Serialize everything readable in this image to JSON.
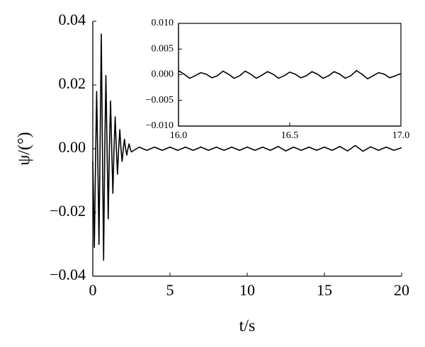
{
  "chart_data": [
    {
      "type": "line",
      "x_label": "t/s",
      "y_label": "ψ/(°)",
      "color": "#000000",
      "xlim": [
        0,
        20
      ],
      "ylim": [
        -0.04,
        0.04
      ],
      "xticks": [
        0,
        5,
        10,
        15,
        20
      ],
      "yticks": [
        {
          "value": -0.04,
          "label": "−0.04"
        },
        {
          "value": -0.02,
          "label": "−0.02"
        },
        {
          "value": 0,
          "label": "0.00"
        },
        0.02,
        0.04
      ],
      "x": [
        0,
        0.1,
        0.175,
        0.25,
        0.325,
        0.4,
        0.475,
        0.55,
        0.625,
        0.7,
        0.775,
        0.85,
        0.925,
        1.0,
        1.075,
        1.15,
        1.225,
        1.3,
        1.375,
        1.45,
        1.525,
        1.6,
        1.675,
        1.75,
        1.825,
        1.9,
        1.975,
        2.05,
        2.125,
        2.2,
        2.275,
        2.35,
        2.425,
        2.5,
        3,
        3.5,
        4,
        4.5,
        5,
        5.5,
        6,
        6.5,
        7,
        7.5,
        8,
        8.5,
        9,
        9.5,
        10,
        10.5,
        11,
        11.5,
        12,
        12.5,
        13,
        13.5,
        14,
        14.5,
        15,
        15.5,
        16,
        16.5,
        17,
        17.5,
        18,
        18.5,
        19,
        19.5,
        20
      ],
      "values": [
        -0.004,
        -0.031,
        -0.005,
        0.018,
        -0.004,
        -0.03,
        0.002,
        0.036,
        0,
        -0.035,
        0,
        0.023,
        0,
        -0.022,
        0,
        0.015,
        0,
        -0.014,
        0,
        0.01,
        0,
        -0.008,
        0,
        0.006,
        0,
        -0.004,
        0,
        0.003,
        0,
        -0.002,
        0,
        0.0015,
        0,
        -0.001,
        0.0005,
        -0.0005,
        0.0005,
        -0.0005,
        0.0005,
        -0.0005,
        0.0005,
        -0.0005,
        0.0005,
        -0.0005,
        0.0005,
        -0.0005,
        0.0005,
        -0.0005,
        0.0005,
        -0.0005,
        0.0005,
        -0.0005,
        0.0007,
        -0.0007,
        0.0005,
        -0.0005,
        0.0005,
        -0.0005,
        0.0005,
        -0.0005,
        0.0007,
        -0.0007,
        0.001,
        -0.0008,
        0.0006,
        -0.0005,
        0.0005,
        -0.0005,
        0.0003
      ]
    },
    {
      "type": "line",
      "color": "#000000",
      "xlim": [
        16,
        17
      ],
      "ylim": [
        -0.01,
        0.01
      ],
      "xticks": [
        {
          "value": 16,
          "label": "16.0"
        },
        {
          "value": 16.5,
          "label": "16.5"
        },
        {
          "value": 17,
          "label": "17.0"
        }
      ],
      "yticks": [
        {
          "value": -0.01,
          "label": "−0.010"
        },
        {
          "value": -0.005,
          "label": "−0.005"
        },
        {
          "value": 0,
          "label": "0.000"
        },
        0.005,
        {
          "value": 0.01,
          "label": "0.010"
        }
      ],
      "x": [
        16,
        16.025,
        16.05,
        16.075,
        16.1,
        16.125,
        16.15,
        16.175,
        16.2,
        16.225,
        16.25,
        16.275,
        16.3,
        16.325,
        16.35,
        16.375,
        16.4,
        16.425,
        16.45,
        16.475,
        16.5,
        16.525,
        16.55,
        16.575,
        16.6,
        16.625,
        16.65,
        16.675,
        16.7,
        16.725,
        16.75,
        16.775,
        16.8,
        16.825,
        16.85,
        16.875,
        16.9,
        16.925,
        16.95,
        16.975,
        17
      ],
      "values": [
        0.0008,
        0.0001,
        -0.0007,
        -0.0002,
        0.0004,
        0.0001,
        -0.0006,
        -0.0002,
        0.0007,
        0.0001,
        -0.0007,
        -0.0002,
        0.0007,
        0.0001,
        -0.0007,
        -0.0001,
        0.0006,
        0.0001,
        -0.0007,
        -0.0002,
        0.0005,
        0.0001,
        -0.0006,
        -0.0002,
        0.0006,
        0.0001,
        -0.0007,
        -0.0002,
        0.0006,
        0.0001,
        -0.0007,
        -0.0002,
        0.0008,
        0.0001,
        -0.0008,
        -0.0002,
        0.0004,
        0.0001,
        -0.0006,
        -0.0002,
        0.0002
      ]
    }
  ]
}
